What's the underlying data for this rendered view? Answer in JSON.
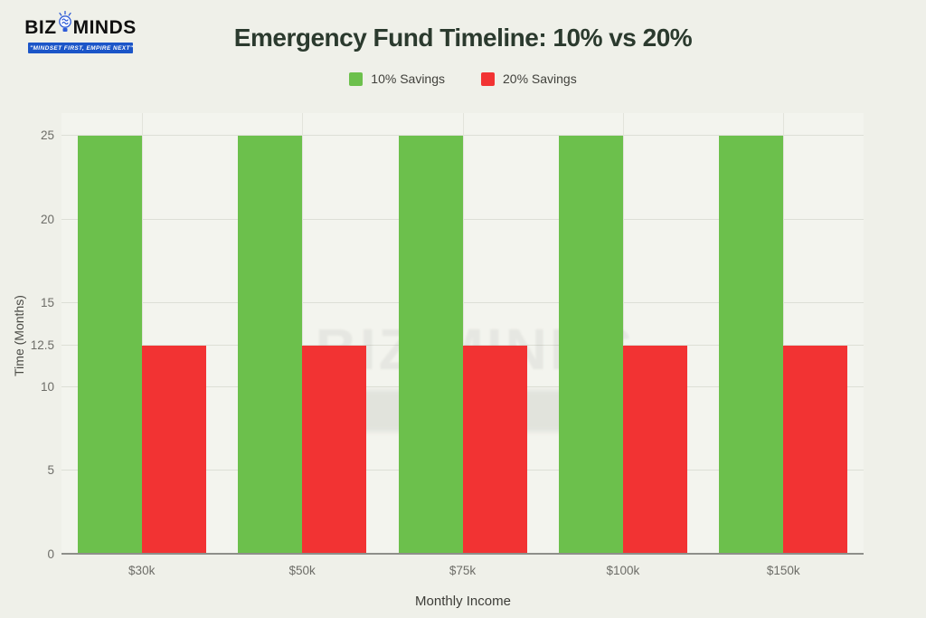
{
  "logo": {
    "part1": "BIZ",
    "part2": "MINDS",
    "tagline": "\"MINDSET FIRST, EMPIRE NEXT\"",
    "banner_color": "#1b55c8",
    "icon_color": "#2e5bd7"
  },
  "watermark": {
    "text": "BIZ MINDS"
  },
  "colors": {
    "page_background": "#eff0e9",
    "plot_background": "#f3f4ee",
    "series_green": "#6cc04c",
    "series_red": "#f23333",
    "title_text": "#2b3a2e"
  },
  "chart_data": {
    "type": "bar",
    "title": "Emergency Fund Timeline: 10% vs 20%",
    "xlabel": "Monthly Income",
    "ylabel": "Time (Months)",
    "categories": [
      "$30k",
      "$50k",
      "$75k",
      "$100k",
      "$150k"
    ],
    "series": [
      {
        "name": "10% Savings",
        "color": "#6cc04c",
        "values": [
          25,
          25,
          25,
          25,
          25
        ]
      },
      {
        "name": "20% Savings",
        "color": "#f23333",
        "values": [
          12.5,
          12.5,
          12.5,
          12.5,
          12.5
        ]
      }
    ],
    "yticks": [
      0,
      5,
      10,
      12.5,
      15,
      20,
      25
    ],
    "ylim": [
      0,
      26.4
    ],
    "grid": true,
    "legend_position": "top-center"
  }
}
